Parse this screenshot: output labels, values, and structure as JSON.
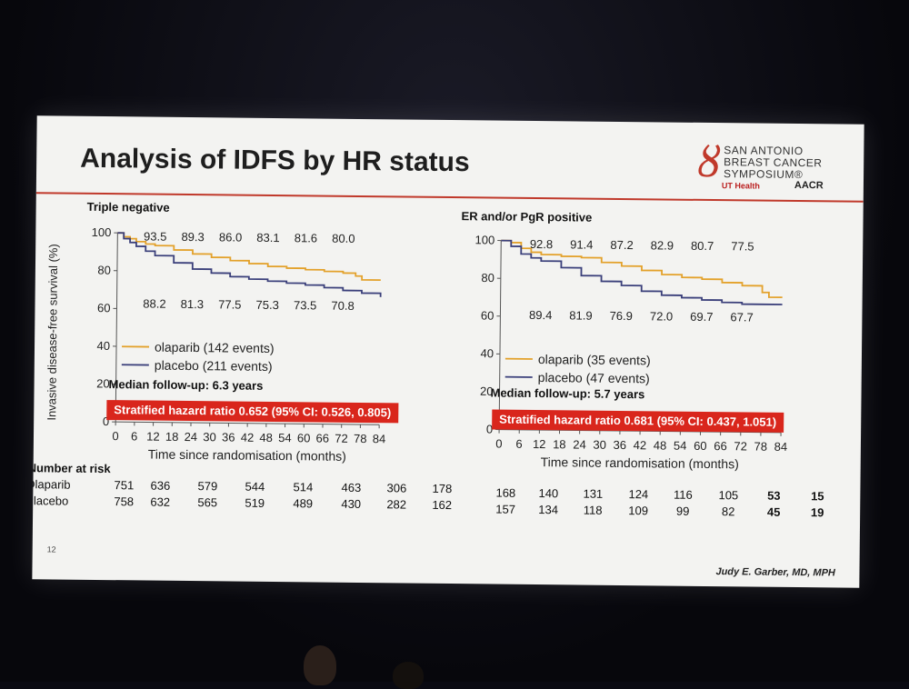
{
  "slide": {
    "title": "Analysis of IDFS by HR status",
    "logo_text": "SAN ANTONIO BREAST CANCER SYMPOSIUM®",
    "logo_ut": "UT Health",
    "logo_aacr": "AACR",
    "number": "12",
    "author": "Judy E. Garber, MD, MPH"
  },
  "colors": {
    "olaparib": "#e3a12a",
    "placebo": "#3a3f7a",
    "accent": "#d9261c"
  },
  "risk": {
    "title": "Number at risk",
    "labels": [
      "Olaparib",
      "Placebo"
    ],
    "olaparib": [
      "751",
      "636",
      "579",
      "544",
      "514",
      "463",
      "306",
      "178",
      "168",
      "140",
      "131",
      "124",
      "116",
      "105",
      "53",
      "15"
    ],
    "placebo": [
      "758",
      "632",
      "565",
      "519",
      "489",
      "430",
      "282",
      "162",
      "157",
      "134",
      "118",
      "109",
      "99",
      "82",
      "45",
      "19"
    ],
    "bold_from": 14
  },
  "chart_data": [
    {
      "type": "line",
      "title": "Triple negative",
      "xlabel": "Time since randomisation (months)",
      "ylabel": "Invasive disease-free survival (%)",
      "xlim": [
        0,
        84
      ],
      "ylim": [
        0,
        100
      ],
      "xticks": [
        0,
        6,
        12,
        18,
        24,
        30,
        36,
        42,
        48,
        54,
        60,
        66,
        72,
        78,
        84
      ],
      "yticks": [
        0,
        20,
        40,
        60,
        80,
        100
      ],
      "median_followup": "Median follow-up: 6.3 years",
      "hazard_ratio": "Stratified hazard ratio 0.652 (95% CI: 0.526, 0.805)",
      "labels_olaparib": [
        "93.5",
        "89.3",
        "86.0",
        "83.1",
        "81.6",
        "80.0"
      ],
      "labels_placebo": [
        "88.2",
        "81.3",
        "77.5",
        "75.3",
        "73.5",
        "70.8"
      ],
      "series": [
        {
          "name": "olaparib (142 events)",
          "color": "#e3a12a",
          "x": [
            0,
            2,
            4,
            6,
            9,
            12,
            18,
            24,
            30,
            36,
            42,
            48,
            54,
            60,
            66,
            72,
            76,
            78,
            84
          ],
          "y": [
            100,
            98,
            97,
            95.5,
            94.3,
            93.5,
            91.3,
            89.3,
            87.6,
            86.0,
            84.5,
            83.1,
            82.3,
            81.6,
            80.8,
            80.0,
            78.5,
            76.5,
            76.5
          ]
        },
        {
          "name": "placebo (211 events)",
          "color": "#3a3f7a",
          "x": [
            0,
            2,
            4,
            6,
            9,
            12,
            18,
            24,
            30,
            36,
            42,
            48,
            54,
            60,
            66,
            72,
            78,
            84
          ],
          "y": [
            100,
            97,
            95,
            93,
            90.5,
            88.2,
            84.5,
            81.3,
            79.3,
            77.5,
            76.3,
            75.3,
            74.4,
            73.5,
            72.2,
            70.8,
            69.5,
            67.5
          ]
        }
      ]
    },
    {
      "type": "line",
      "title": "ER and/or PgR positive",
      "xlabel": "Time since randomisation (months)",
      "ylabel": "",
      "xlim": [
        0,
        84
      ],
      "ylim": [
        0,
        100
      ],
      "xticks": [
        0,
        6,
        12,
        18,
        24,
        30,
        36,
        42,
        48,
        54,
        60,
        66,
        72,
        78,
        84
      ],
      "yticks": [
        0,
        20,
        40,
        60,
        80,
        100
      ],
      "median_followup": "Median follow-up: 5.7 years",
      "hazard_ratio": "Stratified hazard ratio 0.681 (95% CI: 0.437, 1.051)",
      "labels_olaparib": [
        "92.8",
        "91.4",
        "87.2",
        "82.9",
        "80.7",
        "77.5"
      ],
      "labels_placebo": [
        "89.4",
        "81.9",
        "76.9",
        "72.0",
        "69.7",
        "67.7"
      ],
      "series": [
        {
          "name": "olaparib (35 events)",
          "color": "#e3a12a",
          "x": [
            0,
            3,
            6,
            9,
            12,
            18,
            24,
            30,
            36,
            42,
            48,
            54,
            60,
            66,
            72,
            78,
            80,
            84
          ],
          "y": [
            100,
            99,
            96,
            94,
            92.8,
            92,
            91.4,
            89,
            87.2,
            85,
            82.9,
            81.5,
            80.7,
            79,
            77.5,
            74,
            71.5,
            71.5
          ]
        },
        {
          "name": "placebo (47 events)",
          "color": "#3a3f7a",
          "x": [
            0,
            3,
            6,
            9,
            12,
            18,
            24,
            30,
            36,
            42,
            48,
            54,
            60,
            66,
            72,
            78,
            84
          ],
          "y": [
            100,
            97,
            93,
            91,
            89.4,
            86,
            81.9,
            79,
            76.9,
            74,
            72.0,
            70.8,
            69.7,
            68.5,
            67.7,
            67.7,
            67.7
          ]
        }
      ]
    }
  ]
}
